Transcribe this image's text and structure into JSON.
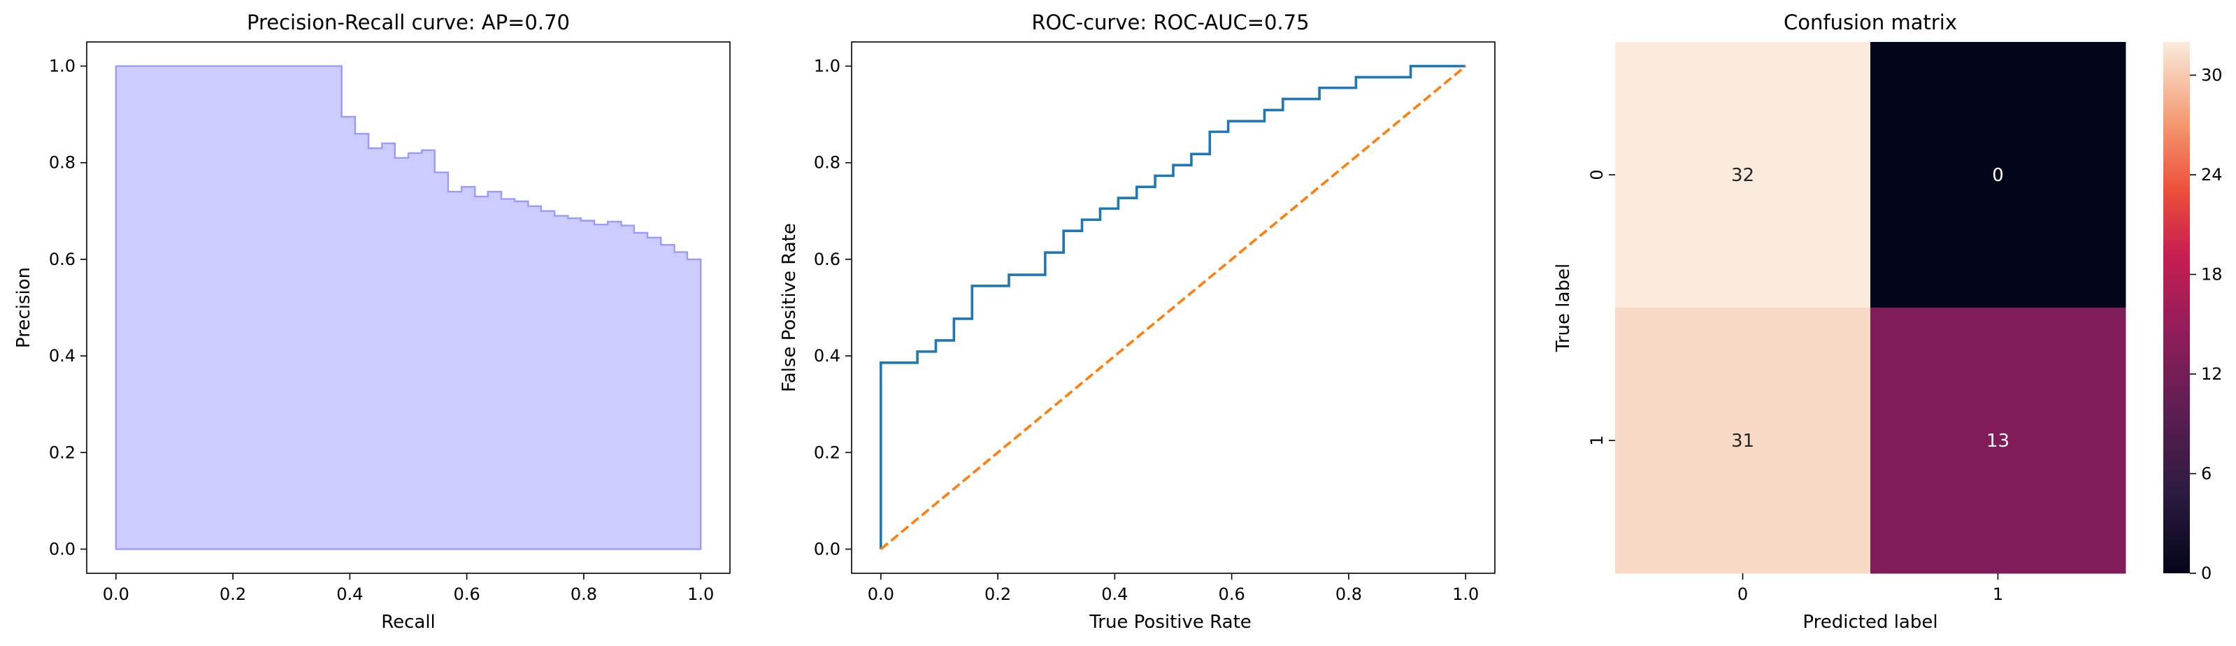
{
  "chart_data": [
    {
      "type": "area",
      "title": "Precision-Recall curve: AP=0.70",
      "xlabel": "Recall",
      "ylabel": "Precision",
      "xlim": [
        -0.05,
        1.05
      ],
      "ylim": [
        -0.05,
        1.05
      ],
      "xticks": [
        "0.0",
        "0.2",
        "0.4",
        "0.6",
        "0.8",
        "1.0"
      ],
      "yticks": [
        "0.0",
        "0.2",
        "0.4",
        "0.6",
        "0.8",
        "1.0"
      ],
      "step": "post",
      "fill_color": "#ccccff",
      "line_color": "#9a9aff",
      "series": [
        {
          "x": [
            0.0,
            0.386,
            0.409,
            0.432,
            0.455,
            0.477,
            0.5,
            0.523,
            0.545,
            0.568,
            0.591,
            0.614,
            0.636,
            0.659,
            0.682,
            0.705,
            0.727,
            0.75,
            0.773,
            0.795,
            0.818,
            0.841,
            0.864,
            0.886,
            0.909,
            0.932,
            0.955,
            0.977,
            1.0
          ],
          "y": [
            1.0,
            0.895,
            0.86,
            0.83,
            0.84,
            0.81,
            0.82,
            0.826,
            0.78,
            0.74,
            0.75,
            0.73,
            0.74,
            0.725,
            0.72,
            0.71,
            0.7,
            0.69,
            0.685,
            0.68,
            0.672,
            0.678,
            0.67,
            0.655,
            0.645,
            0.63,
            0.615,
            0.6,
            0.6
          ]
        }
      ]
    },
    {
      "type": "line",
      "title": "ROC-curve: ROC-AUC=0.75",
      "xlabel": "True Positive Rate",
      "ylabel": "False Positive Rate",
      "xlim": [
        -0.05,
        1.05
      ],
      "ylim": [
        -0.05,
        1.05
      ],
      "xticks": [
        "0.0",
        "0.2",
        "0.4",
        "0.6",
        "0.8",
        "1.0"
      ],
      "yticks": [
        "0.0",
        "0.2",
        "0.4",
        "0.6",
        "0.8",
        "1.0"
      ],
      "series": [
        {
          "color": "#1f77b4",
          "style": "solid",
          "x": [
            0.0,
            0.0,
            0.0625,
            0.0625,
            0.094,
            0.094,
            0.125,
            0.125,
            0.156,
            0.156,
            0.219,
            0.219,
            0.281,
            0.281,
            0.3125,
            0.3125,
            0.344,
            0.344,
            0.375,
            0.375,
            0.406,
            0.406,
            0.4375,
            0.4375,
            0.469,
            0.469,
            0.5,
            0.5,
            0.531,
            0.531,
            0.5625,
            0.5625,
            0.594,
            0.594,
            0.656,
            0.656,
            0.6875,
            0.6875,
            0.75,
            0.75,
            0.8125,
            0.8125,
            0.906,
            0.906,
            1.0
          ],
          "y": [
            0.0,
            0.386,
            0.386,
            0.409,
            0.409,
            0.432,
            0.432,
            0.477,
            0.477,
            0.545,
            0.545,
            0.568,
            0.568,
            0.614,
            0.614,
            0.659,
            0.659,
            0.682,
            0.682,
            0.705,
            0.705,
            0.727,
            0.727,
            0.75,
            0.75,
            0.773,
            0.773,
            0.795,
            0.795,
            0.818,
            0.818,
            0.864,
            0.864,
            0.886,
            0.886,
            0.909,
            0.909,
            0.932,
            0.932,
            0.955,
            0.955,
            0.977,
            0.977,
            1.0,
            1.0
          ]
        },
        {
          "color": "#ff7f0e",
          "style": "dashed",
          "x": [
            0.0,
            1.0
          ],
          "y": [
            0.0,
            1.0
          ]
        }
      ]
    },
    {
      "type": "heatmap",
      "title": "Confusion matrix",
      "xlabel": "Predicted label",
      "ylabel": "True label",
      "x_categories": [
        "0",
        "1"
      ],
      "y_categories": [
        "0",
        "1"
      ],
      "values": [
        [
          32,
          0
        ],
        [
          31,
          13
        ]
      ],
      "colorbar_ticks": [
        "0",
        "6",
        "12",
        "18",
        "24",
        "30"
      ],
      "colorbar_range": [
        0,
        32
      ]
    }
  ]
}
